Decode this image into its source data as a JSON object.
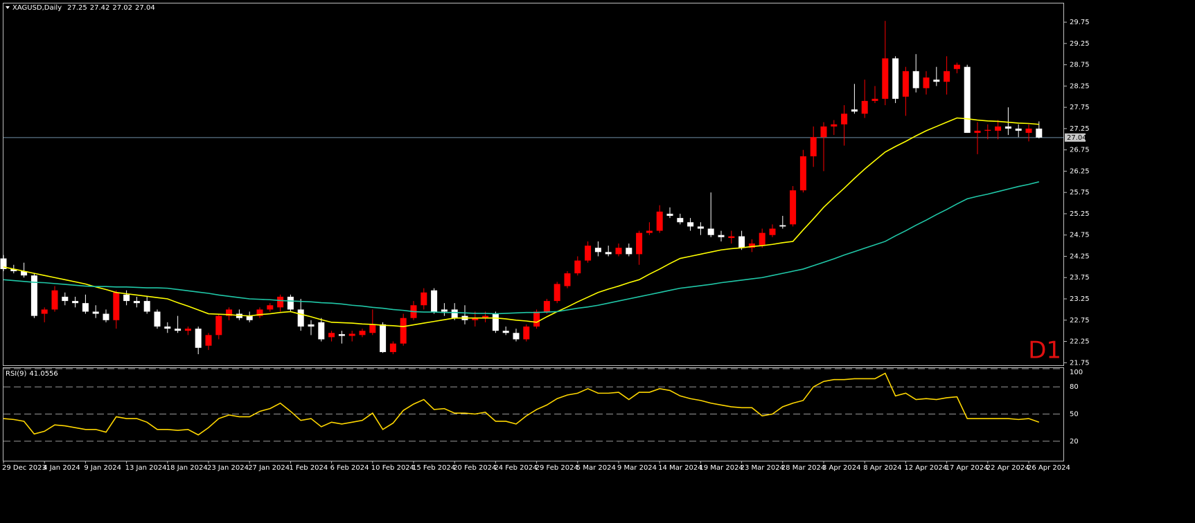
{
  "chart_data": {
    "type": "candlestick",
    "title": "XAGUSD,Daily",
    "timeframe_label": "D1",
    "categories": [
      "29 Dec 2023",
      null,
      null,
      null,
      "4 Jan 2024",
      null,
      null,
      null,
      "9 Jan 2024",
      null,
      null,
      null,
      "13 Jan 2024",
      null,
      null,
      null,
      "18 Jan 2024",
      null,
      null,
      null,
      "23 Jan 2024",
      null,
      null,
      null,
      "27 Jan 2024",
      null,
      null,
      null,
      "1 Feb 2024",
      null,
      null,
      null,
      "6 Feb 2024",
      null,
      null,
      null,
      "10 Feb 2024",
      null,
      null,
      null,
      "15 Feb 2024",
      null,
      null,
      null,
      "20 Feb 2024",
      null,
      null,
      null,
      "24 Feb 2024",
      null,
      null,
      null,
      "29 Feb 2024",
      null,
      null,
      null,
      "5 Mar 2024",
      null,
      null,
      null,
      "9 Mar 2024",
      null,
      null,
      null,
      "14 Mar 2024",
      null,
      null,
      null,
      "19 Mar 2024",
      null,
      null,
      null,
      "23 Mar 2024",
      null,
      null,
      null,
      "28 Mar 2024",
      null,
      null,
      null,
      "3 Apr 2024",
      null,
      null,
      null,
      "8 Apr 2024",
      null,
      null,
      null,
      "12 Apr 2024",
      null,
      null,
      null,
      "17 Apr 2024",
      null,
      null,
      null,
      "22 Apr 2024",
      null,
      null,
      null,
      "26 Apr 2024",
      null
    ],
    "open": [
      24.2,
      23.95,
      23.9,
      23.8,
      22.9,
      23.0,
      23.3,
      23.2,
      23.15,
      22.95,
      22.9,
      22.75,
      23.35,
      23.2,
      23.2,
      22.95,
      22.6,
      22.55,
      22.5,
      22.55,
      22.15,
      22.4,
      22.85,
      22.9,
      22.85,
      22.85,
      23.0,
      23.05,
      23.3,
      23.0,
      22.65,
      22.7,
      22.35,
      22.42,
      22.38,
      22.4,
      22.45,
      22.65,
      22.0,
      22.2,
      22.8,
      23.1,
      23.45,
      23.0,
      23.0,
      22.85,
      22.75,
      22.8,
      22.9,
      22.5,
      22.45,
      22.3,
      22.6,
      22.95,
      23.2,
      23.55,
      23.85,
      24.15,
      24.45,
      24.35,
      24.3,
      24.45,
      24.3,
      24.8,
      24.85,
      25.25,
      25.15,
      25.05,
      24.95,
      24.9,
      24.75,
      24.68,
      24.72,
      24.45,
      24.5,
      24.75,
      24.98,
      25.0,
      25.8,
      26.6,
      27.05,
      27.3,
      27.35,
      27.7,
      27.6,
      27.9,
      27.95,
      28.9,
      28.0,
      28.6,
      28.2,
      28.4,
      28.35,
      28.65,
      28.7,
      27.15,
      27.2,
      27.2,
      27.3,
      27.25,
      27.15,
      27.25
    ],
    "high": [
      24.28,
      24.05,
      24.1,
      23.85,
      23.05,
      23.55,
      23.4,
      23.3,
      23.35,
      23.1,
      23.0,
      23.45,
      23.45,
      23.3,
      23.3,
      23.0,
      22.7,
      22.85,
      22.6,
      22.6,
      22.45,
      22.9,
      23.05,
      23.0,
      22.95,
      23.05,
      23.15,
      23.35,
      23.35,
      23.25,
      22.75,
      22.8,
      22.5,
      22.5,
      22.5,
      22.55,
      23.0,
      22.7,
      22.25,
      22.9,
      23.2,
      23.5,
      23.5,
      23.15,
      23.15,
      23.1,
      22.95,
      22.95,
      22.95,
      22.6,
      22.55,
      22.65,
      23.0,
      23.25,
      23.65,
      23.9,
      24.25,
      24.6,
      24.6,
      24.5,
      24.55,
      24.55,
      24.85,
      25.05,
      25.45,
      25.4,
      25.25,
      25.15,
      25.05,
      25.75,
      24.85,
      24.85,
      24.85,
      24.65,
      24.9,
      25.0,
      25.2,
      25.9,
      26.75,
      27.3,
      27.4,
      27.45,
      27.8,
      28.3,
      28.4,
      28.25,
      29.78,
      28.95,
      28.7,
      29.0,
      28.6,
      28.7,
      28.95,
      28.8,
      28.75,
      27.4,
      27.35,
      27.45,
      27.75,
      27.35,
      27.35,
      27.42
    ],
    "low": [
      23.9,
      23.85,
      23.75,
      22.8,
      22.7,
      22.95,
      23.1,
      23.05,
      22.9,
      22.8,
      22.7,
      22.55,
      23.1,
      23.05,
      22.9,
      22.55,
      22.45,
      22.45,
      22.4,
      21.95,
      22.05,
      22.3,
      22.75,
      22.75,
      22.7,
      22.8,
      22.95,
      22.95,
      22.95,
      22.5,
      22.4,
      22.25,
      22.25,
      22.2,
      22.25,
      22.35,
      22.4,
      21.98,
      21.95,
      22.15,
      22.75,
      23.0,
      22.9,
      22.85,
      22.75,
      22.65,
      22.6,
      22.7,
      22.45,
      22.4,
      22.25,
      22.25,
      22.55,
      22.9,
      23.15,
      23.5,
      23.8,
      24.1,
      24.25,
      24.25,
      24.25,
      24.25,
      24.05,
      24.75,
      24.8,
      25.15,
      25.0,
      24.85,
      24.75,
      24.7,
      24.6,
      24.55,
      24.4,
      24.35,
      24.45,
      24.7,
      24.9,
      24.95,
      25.75,
      26.35,
      26.25,
      27.1,
      26.85,
      27.6,
      27.5,
      27.85,
      27.8,
      27.85,
      27.55,
      28.1,
      28.05,
      28.25,
      28.05,
      28.55,
      27.15,
      26.65,
      27.0,
      27.0,
      27.1,
      27.05,
      26.95,
      27.02
    ],
    "close": [
      23.95,
      23.9,
      23.8,
      22.85,
      23.0,
      23.45,
      23.2,
      23.15,
      22.95,
      22.9,
      22.75,
      23.4,
      23.2,
      23.15,
      22.95,
      22.6,
      22.55,
      22.5,
      22.55,
      22.1,
      22.4,
      22.85,
      23.0,
      22.8,
      22.75,
      23.0,
      23.1,
      23.3,
      23.0,
      22.6,
      22.6,
      22.3,
      22.45,
      22.38,
      22.43,
      22.5,
      22.65,
      22.0,
      22.2,
      22.8,
      23.1,
      23.4,
      22.95,
      22.95,
      22.8,
      22.75,
      22.8,
      22.85,
      22.5,
      22.45,
      22.3,
      22.6,
      22.95,
      23.2,
      23.6,
      23.85,
      24.15,
      24.5,
      24.35,
      24.3,
      24.45,
      24.3,
      24.8,
      24.85,
      25.3,
      25.2,
      25.05,
      24.95,
      24.9,
      24.75,
      24.7,
      24.72,
      24.45,
      24.55,
      24.8,
      24.9,
      24.95,
      25.8,
      26.6,
      27.05,
      27.3,
      27.35,
      27.6,
      27.65,
      27.9,
      27.95,
      28.9,
      27.95,
      28.6,
      28.2,
      28.45,
      28.35,
      28.6,
      28.75,
      27.15,
      27.2,
      27.22,
      27.3,
      27.25,
      27.2,
      27.25,
      27.04
    ],
    "up_color": "#ff0000",
    "down_color": "#ffffff",
    "ylim": [
      21.69,
      30.19
    ],
    "yticks": [
      29.75,
      29.25,
      28.75,
      28.25,
      27.75,
      27.25,
      26.75,
      26.25,
      25.75,
      25.25,
      24.75,
      24.25,
      23.75,
      23.25,
      22.75,
      22.25,
      21.75
    ],
    "moving_averages": [
      {
        "color": "#ffff00",
        "values": [
          24.0,
          23.95,
          23.9,
          23.85,
          23.8,
          23.75,
          23.7,
          23.65,
          23.6,
          23.53,
          23.47,
          23.4,
          23.37,
          23.34,
          23.31,
          23.28,
          23.25,
          23.16,
          23.08,
          22.99,
          22.9,
          22.89,
          22.88,
          22.86,
          22.85,
          22.88,
          22.9,
          22.93,
          22.95,
          22.89,
          22.83,
          22.76,
          22.7,
          22.69,
          22.68,
          22.66,
          22.65,
          22.63,
          22.62,
          22.6,
          22.64,
          22.68,
          22.72,
          22.76,
          22.8,
          22.8,
          22.8,
          22.8,
          22.8,
          22.78,
          22.75,
          22.73,
          22.7,
          22.83,
          22.95,
          23.06,
          23.18,
          23.29,
          23.4,
          23.48,
          23.55,
          23.63,
          23.7,
          23.83,
          23.95,
          24.08,
          24.2,
          24.25,
          24.3,
          24.35,
          24.4,
          24.43,
          24.45,
          24.48,
          24.5,
          24.53,
          24.57,
          24.6,
          24.87,
          25.13,
          25.4,
          25.63,
          25.85,
          26.08,
          26.3,
          26.5,
          26.7,
          26.83,
          26.95,
          27.08,
          27.2,
          27.3,
          27.4,
          27.5,
          27.48,
          27.45,
          27.43,
          27.42,
          27.4,
          27.38,
          27.37,
          27.35
        ]
      },
      {
        "color": "#20c8a8",
        "values": [
          23.7,
          23.68,
          23.66,
          23.64,
          23.63,
          23.61,
          23.59,
          23.57,
          23.55,
          23.54,
          23.54,
          23.53,
          23.53,
          23.52,
          23.51,
          23.51,
          23.5,
          23.47,
          23.44,
          23.41,
          23.38,
          23.34,
          23.31,
          23.28,
          23.25,
          23.24,
          23.23,
          23.21,
          23.2,
          23.19,
          23.18,
          23.16,
          23.15,
          23.13,
          23.1,
          23.08,
          23.05,
          23.03,
          23.0,
          22.98,
          22.95,
          22.94,
          22.94,
          22.93,
          22.93,
          22.92,
          22.91,
          22.91,
          22.9,
          22.91,
          22.92,
          22.93,
          22.93,
          22.94,
          22.95,
          22.99,
          23.03,
          23.06,
          23.1,
          23.15,
          23.2,
          23.25,
          23.3,
          23.35,
          23.4,
          23.45,
          23.5,
          23.53,
          23.56,
          23.59,
          23.63,
          23.66,
          23.69,
          23.72,
          23.75,
          23.8,
          23.85,
          23.9,
          23.95,
          24.03,
          24.11,
          24.19,
          24.28,
          24.36,
          24.44,
          24.52,
          24.6,
          24.73,
          24.85,
          24.98,
          25.1,
          25.23,
          25.35,
          25.48,
          25.6,
          25.66,
          25.71,
          25.77,
          25.83,
          25.89,
          25.94,
          26.0
        ]
      }
    ],
    "indicator": {
      "name": "RSI(9)",
      "color": "#ffd700",
      "ylim": [
        0,
        100
      ],
      "yticks": [
        100,
        80,
        50,
        20
      ],
      "values": [
        45,
        44,
        42,
        28,
        31,
        38,
        37,
        35,
        33,
        33,
        30,
        47,
        45,
        45,
        41,
        33,
        33,
        32,
        33,
        27,
        35,
        45,
        49,
        47,
        47,
        53,
        56,
        62,
        53,
        43,
        45,
        36,
        41,
        39,
        41,
        43,
        51,
        33,
        40,
        54,
        61,
        66,
        55,
        56,
        51,
        51,
        50,
        52,
        42,
        42,
        39,
        48,
        55,
        60,
        67,
        71,
        73,
        78,
        73,
        73,
        74,
        66,
        74,
        74,
        78,
        76,
        70,
        67,
        65,
        62,
        60,
        58,
        57,
        57,
        48,
        50,
        58,
        62,
        65,
        80,
        86,
        88,
        88,
        89,
        89,
        89,
        95,
        70,
        73,
        66,
        67,
        66,
        68,
        69,
        45,
        45,
        45,
        45,
        45,
        44,
        45,
        41.0556
      ]
    }
  }
}
